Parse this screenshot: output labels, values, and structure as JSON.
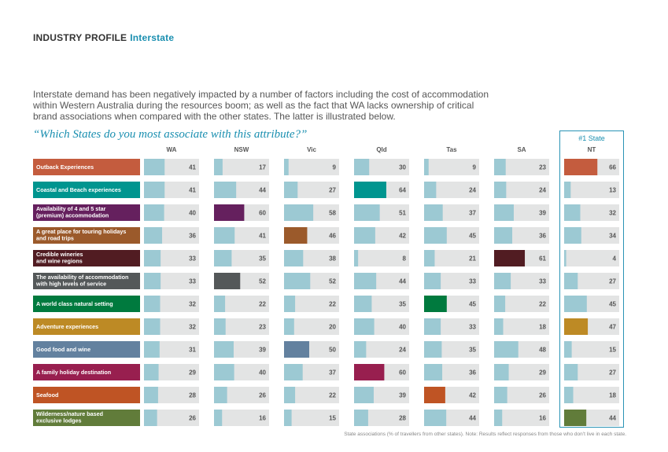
{
  "header": {
    "section": "INDUSTRY PROFILE",
    "subsection": "Interstate"
  },
  "intro": "Interstate demand has been negatively impacted by a number of factors including the cost of accommodation within Western Australia during the resources boom; as well as the fact that WA lacks ownership of critical brand associations when compared with the other states. The latter is illustrated below.",
  "question": "“Which States do you most associate with this attribute?”",
  "highlight_label": "#1 State",
  "footnote": "State associations (% of travellers from other states). Note: Results reflect responses from those who don’t live in each state.",
  "colors": {
    "track": "#e3e4e4",
    "default_bar": "#9cc9d3",
    "accent": "#1a8fb0"
  },
  "chart_data": {
    "type": "bar",
    "orientation": "horizontal",
    "xlim": [
      0,
      100
    ],
    "states": [
      "WA",
      "NSW",
      "Vic",
      "Qld",
      "Tas",
      "SA",
      "NT"
    ],
    "attributes": [
      {
        "label": "Outback Experiences",
        "color": "#c45c3e",
        "values": [
          41,
          17,
          9,
          30,
          9,
          23,
          66
        ],
        "top": 6
      },
      {
        "label": "Coastal and Beach experiences",
        "color": "#00958f",
        "values": [
          41,
          44,
          27,
          64,
          24,
          24,
          13
        ],
        "top": 3
      },
      {
        "label": "Availability of 4 and 5 star\n(premium) accommodation",
        "color": "#65205e",
        "values": [
          40,
          60,
          58,
          51,
          37,
          39,
          32
        ],
        "top": 1
      },
      {
        "label": "A great place for touring holidays\nand road trips",
        "color": "#9b5a2b",
        "values": [
          36,
          41,
          46,
          42,
          45,
          36,
          34
        ],
        "top": 2
      },
      {
        "label": "Credible wineries\nand wine regions",
        "color": "#511c22",
        "values": [
          33,
          35,
          38,
          8,
          21,
          61,
          4
        ],
        "top": 5
      },
      {
        "label": "The availability of accommodation\nwith high levels of service",
        "color": "#545859",
        "values": [
          33,
          52,
          52,
          44,
          33,
          33,
          27
        ],
        "top": 1
      },
      {
        "label": "A world class natural setting",
        "color": "#007a3e",
        "values": [
          32,
          22,
          22,
          35,
          45,
          22,
          45
        ],
        "top": 4
      },
      {
        "label": "Adventure experiences",
        "color": "#bd8a25",
        "values": [
          32,
          23,
          20,
          40,
          33,
          18,
          47
        ],
        "top": 6
      },
      {
        "label": "Good food and wine",
        "color": "#63819f",
        "values": [
          31,
          39,
          50,
          24,
          35,
          48,
          15
        ],
        "top": 2
      },
      {
        "label": "A family holiday destination",
        "color": "#981f4f",
        "values": [
          29,
          40,
          37,
          60,
          36,
          29,
          27
        ],
        "top": 3
      },
      {
        "label": "Seafood",
        "color": "#bf5424",
        "values": [
          28,
          26,
          22,
          39,
          42,
          26,
          18
        ],
        "top": 4
      },
      {
        "label": "Wilderness/nature based\nexclusive lodges",
        "color": "#617c3a",
        "values": [
          26,
          16,
          15,
          28,
          44,
          16,
          44
        ],
        "top": 6
      }
    ]
  }
}
